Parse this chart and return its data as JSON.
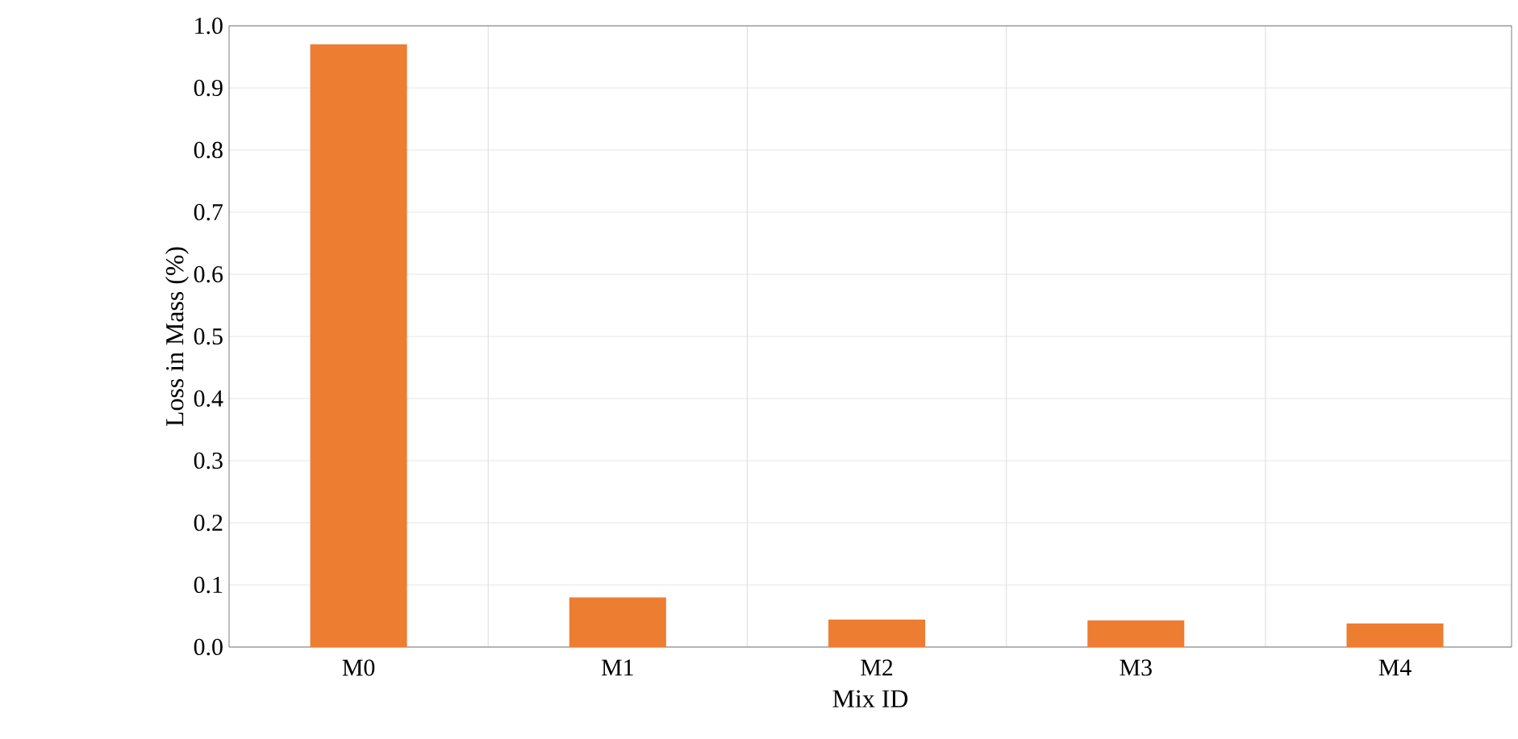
{
  "chart_data": {
    "type": "bar",
    "xlabel": "Mix ID",
    "ylabel": "Loss in Mass (%)",
    "categories": [
      "M0",
      "M1",
      "M2",
      "M3",
      "M4"
    ],
    "values": [
      0.97,
      0.08,
      0.044,
      0.043,
      0.038
    ],
    "color": "#ed7d31",
    "ylim": [
      0,
      1.0
    ],
    "yticks": [
      {
        "value": 0,
        "label": "0.0"
      },
      0.1,
      0.2,
      0.3,
      0.4,
      0.5,
      0.6,
      0.7,
      0.8,
      0.9,
      {
        "value": 1.0,
        "label": "1.0"
      }
    ],
    "grid": true
  }
}
